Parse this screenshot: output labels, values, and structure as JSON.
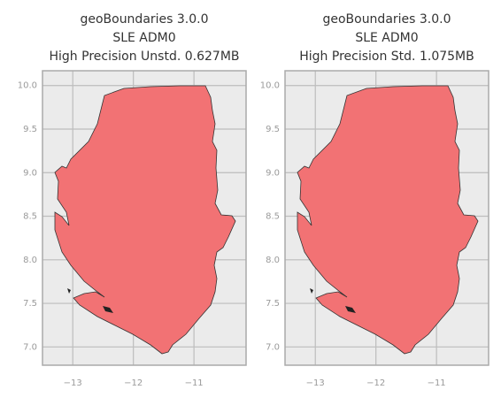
{
  "chart_data": [
    {
      "type": "map",
      "title": [
        "geoBoundaries 3.0.0",
        "SLE ADM0",
        "High Precision Unstd. 0.627MB"
      ],
      "color": "#f27274",
      "grid": true,
      "xlim": [
        -13.5,
        -10.14
      ],
      "ylim": [
        6.79,
        10.17
      ],
      "xticks": [
        {
          "value": -13,
          "label": "−13"
        },
        {
          "value": -12,
          "label": "−12"
        },
        {
          "value": -11,
          "label": "−11"
        }
      ],
      "yticks": [
        {
          "value": 7,
          "label": "7.0"
        },
        7.5,
        {
          "value": 8,
          "label": "8.0"
        },
        8.5,
        {
          "value": 9,
          "label": "9.0"
        },
        9.5,
        {
          "value": 10,
          "label": "10.0"
        }
      ]
    },
    {
      "type": "map",
      "title": [
        "geoBoundaries 3.0.0",
        "SLE ADM0",
        "High Precision Std. 1.075MB"
      ],
      "color": "#f27274",
      "grid": true,
      "xlim": [
        -13.5,
        -10.14
      ],
      "ylim": [
        6.79,
        10.17
      ],
      "xticks": [
        {
          "value": -13,
          "label": "−13"
        },
        {
          "value": -12,
          "label": "−12"
        },
        {
          "value": -11,
          "label": "−11"
        }
      ],
      "yticks": [
        {
          "value": 7,
          "label": "7.0"
        },
        7.5,
        {
          "value": 8,
          "label": "8.0"
        },
        8.5,
        {
          "value": 9,
          "label": "9.0"
        },
        9.5,
        {
          "value": 10,
          "label": "10.0"
        }
      ]
    }
  ]
}
